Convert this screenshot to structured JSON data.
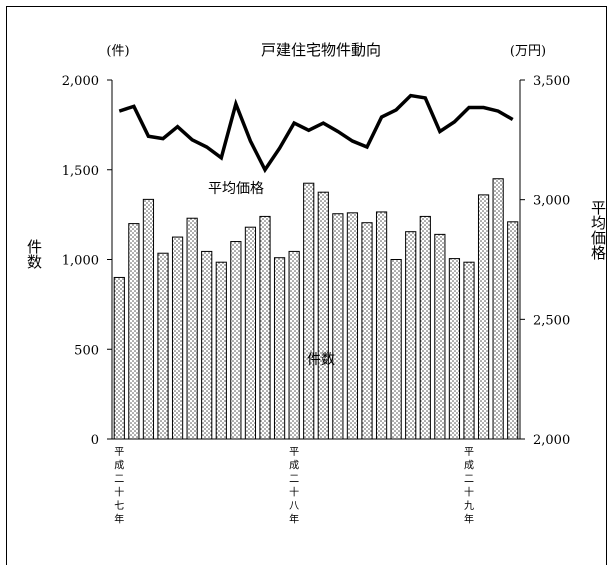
{
  "chart_data": {
    "type": "bar",
    "title": "戸建住宅物件動向",
    "ylabel_left": "件数",
    "ylabel_right": "平均価格",
    "left_unit": "(件)",
    "right_unit": "(万円)",
    "ylim_left": [
      0,
      2000
    ],
    "ylim_right": [
      2000,
      3500
    ],
    "left_ticks": [
      "0",
      "500",
      "1,000",
      "1,500",
      "2,000"
    ],
    "right_ticks": [
      "2,000",
      "2,500",
      "3,000",
      "3,500"
    ],
    "era_labels": [
      {
        "index": 0,
        "text": "平成二十七年"
      },
      {
        "index": 12,
        "text": "平成二十八年"
      },
      {
        "index": 24,
        "text": "平成二十九年"
      }
    ],
    "annotations": {
      "line": "平均価格",
      "bars": "件数"
    },
    "series": [
      {
        "name": "件数",
        "kind": "bar",
        "axis": "left",
        "values": [
          900,
          1200,
          1335,
          1035,
          1125,
          1230,
          1045,
          985,
          1100,
          1180,
          1240,
          1010,
          1045,
          1425,
          1375,
          1255,
          1260,
          1205,
          1265,
          1000,
          1155,
          1240,
          1140,
          1005,
          985,
          1360,
          1450,
          1210
        ]
      },
      {
        "name": "平均価格",
        "kind": "line",
        "axis": "right",
        "values": [
          3370,
          3390,
          3265,
          3255,
          3305,
          3250,
          3220,
          3175,
          3400,
          3245,
          3125,
          3215,
          3320,
          3290,
          3320,
          3285,
          3245,
          3220,
          3345,
          3375,
          3435,
          3425,
          3285,
          3325,
          3385,
          3385,
          3370,
          3335
        ]
      }
    ]
  }
}
